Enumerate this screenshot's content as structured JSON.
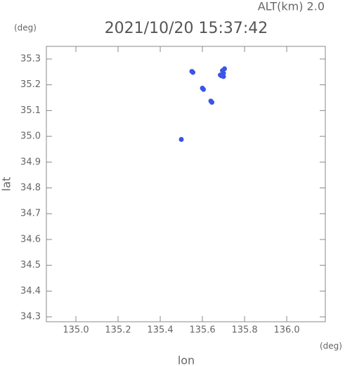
{
  "chart_data": {
    "type": "scatter",
    "title": "2021/10/20 15:37:42",
    "annotation": "ALT(km) 2.0",
    "xlabel": "lon",
    "ylabel": "lat",
    "xunit": "(deg)",
    "yunit": "(deg)",
    "color": "#3a55e8",
    "x": [
      135.55,
      135.555,
      135.6,
      135.605,
      135.64,
      135.645,
      135.69,
      135.7,
      135.705,
      135.695,
      135.685,
      135.7,
      135.5
    ],
    "y": [
      35.252,
      35.248,
      35.187,
      35.182,
      35.137,
      35.132,
      35.235,
      35.232,
      35.262,
      35.255,
      35.238,
      35.245,
      34.988
    ],
    "xlim": [
      134.86,
      136.183
    ],
    "ylim": [
      34.281,
      35.349
    ],
    "xticks": [
      {
        "value": 135.0,
        "label": "135.0"
      },
      135.2,
      135.4,
      135.6,
      135.8,
      {
        "value": 136.0,
        "label": "136.0"
      }
    ],
    "yticks": [
      34.3,
      34.4,
      34.5,
      34.6,
      34.7,
      34.8,
      34.9,
      {
        "value": 35.0,
        "label": "35.0"
      },
      35.1,
      35.2,
      35.3
    ]
  }
}
